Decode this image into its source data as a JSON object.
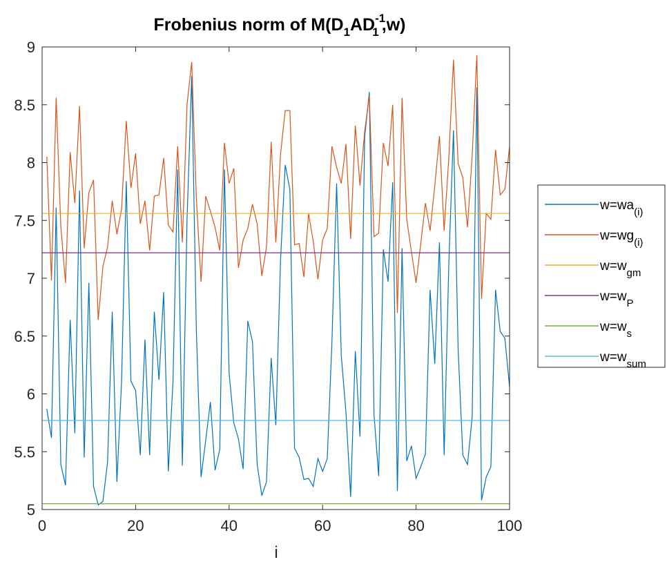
{
  "chart_data": {
    "type": "line",
    "title": {
      "prefix": "Frobenius norm of M(D",
      "sub1": "1",
      "mid": "AD",
      "sup": "-1",
      "sub2": "1",
      "suffix": ",w)"
    },
    "xlabel": "i",
    "ylabel": "",
    "xlim": [
      0,
      100
    ],
    "ylim": [
      5,
      9
    ],
    "xticks": [
      "0",
      "20",
      "40",
      "60",
      "80",
      "100"
    ],
    "yticks": [
      "5",
      "5.5",
      "6",
      "6.5",
      "7",
      "7.5",
      "8",
      "8.5",
      "9"
    ],
    "grid": false,
    "legend_position": "outside-right",
    "series": [
      {
        "name": "w=wa",
        "name_sub": "(i)",
        "color": "#0072BD",
        "x": [
          1,
          2,
          3,
          4,
          5,
          6,
          7,
          8,
          9,
          10,
          11,
          12,
          13,
          14,
          15,
          16,
          17,
          18,
          19,
          20,
          21,
          22,
          23,
          24,
          25,
          26,
          27,
          28,
          29,
          30,
          31,
          32,
          33,
          34,
          35,
          36,
          37,
          38,
          39,
          40,
          41,
          42,
          43,
          44,
          45,
          46,
          47,
          48,
          49,
          50,
          51,
          52,
          53,
          54,
          55,
          56,
          57,
          58,
          59,
          60,
          61,
          62,
          63,
          64,
          65,
          66,
          67,
          68,
          69,
          70,
          71,
          72,
          73,
          74,
          75,
          76,
          77,
          78,
          79,
          80,
          81,
          82,
          83,
          84,
          85,
          86,
          87,
          88,
          89,
          90,
          91,
          92,
          93,
          94,
          95,
          96,
          97,
          98,
          99,
          100
        ],
        "y": [
          5.87,
          5.62,
          7.61,
          5.39,
          5.21,
          6.64,
          5.66,
          7.76,
          5.45,
          6.96,
          5.2,
          5.04,
          5.07,
          5.41,
          6.71,
          5.24,
          6.11,
          7.84,
          6.11,
          6.03,
          5.47,
          6.47,
          5.47,
          6.71,
          6.12,
          6.88,
          5.33,
          6.11,
          7.94,
          5.38,
          7.5,
          8.75,
          6.54,
          5.28,
          5.6,
          5.93,
          5.34,
          5.52,
          7.94,
          6.18,
          5.75,
          5.61,
          5.35,
          6.63,
          6.45,
          5.39,
          5.12,
          5.24,
          6.31,
          5.73,
          7.15,
          7.98,
          7.77,
          5.53,
          5.45,
          5.26,
          5.27,
          5.2,
          5.44,
          5.33,
          5.44,
          6.45,
          7.82,
          6.33,
          5.84,
          5.11,
          6.37,
          5.63,
          8.22,
          8.61,
          5.82,
          5.29,
          7.25,
          6.97,
          7.83,
          5.16,
          7.26,
          5.42,
          5.55,
          5.27,
          5.37,
          5.48,
          6.9,
          6.26,
          7.31,
          5.47,
          7.12,
          8.28,
          6.38,
          5.47,
          5.39,
          5.8,
          8.65,
          5.08,
          5.28,
          5.37,
          6.9,
          6.54,
          6.48,
          6.06
        ]
      },
      {
        "name": "w=wg",
        "name_sub": "(i)",
        "color": "#D95319",
        "x": [
          1,
          2,
          3,
          4,
          5,
          6,
          7,
          8,
          9,
          10,
          11,
          12,
          13,
          14,
          15,
          16,
          17,
          18,
          19,
          20,
          21,
          22,
          23,
          24,
          25,
          26,
          27,
          28,
          29,
          30,
          31,
          32,
          33,
          34,
          35,
          36,
          37,
          38,
          39,
          40,
          41,
          42,
          43,
          44,
          45,
          46,
          47,
          48,
          49,
          50,
          51,
          52,
          53,
          54,
          55,
          56,
          57,
          58,
          59,
          60,
          61,
          62,
          63,
          64,
          65,
          66,
          67,
          68,
          69,
          70,
          71,
          72,
          73,
          74,
          75,
          76,
          77,
          78,
          79,
          80,
          81,
          82,
          83,
          84,
          85,
          86,
          87,
          88,
          89,
          90,
          91,
          92,
          93,
          94,
          95,
          96,
          97,
          98,
          99,
          100
        ],
        "y": [
          8.05,
          6.98,
          8.56,
          7.45,
          6.96,
          8.09,
          7.65,
          8.49,
          7.26,
          7.74,
          7.85,
          6.64,
          7.1,
          7.27,
          7.67,
          7.38,
          7.6,
          8.36,
          7.78,
          8.08,
          7.47,
          7.67,
          7.24,
          7.71,
          7.72,
          8.04,
          7.46,
          7.4,
          8.14,
          7.31,
          8.5,
          8.87,
          7.69,
          6.97,
          7.71,
          7.58,
          7.44,
          7.24,
          8.17,
          7.82,
          7.95,
          7.09,
          7.33,
          7.43,
          7.64,
          7.47,
          7.02,
          7.27,
          8.18,
          7.31,
          8.07,
          8.45,
          8.45,
          7.29,
          7.3,
          7.01,
          7.56,
          7.32,
          6.99,
          7.33,
          7.43,
          8.14,
          7.96,
          7.82,
          8.16,
          7.34,
          8.32,
          7.8,
          8.27,
          8.58,
          7.36,
          7.39,
          8.17,
          7.97,
          8.5,
          6.7,
          8.56,
          7.51,
          7.23,
          6.96,
          7.3,
          7.65,
          7.41,
          7.8,
          8.23,
          7.41,
          8.04,
          8.89,
          7.99,
          7.87,
          7.44,
          8.06,
          8.93,
          6.82,
          7.56,
          7.51,
          8.11,
          7.72,
          7.77,
          8.14
        ]
      },
      {
        "name": "w=w",
        "name_sub": "gm",
        "color": "#EDB120",
        "x": [
          0,
          100
        ],
        "y": [
          7.56,
          7.56
        ]
      },
      {
        "name": "w=w",
        "name_sub": "P",
        "color": "#7E2F8E",
        "x": [
          0,
          100
        ],
        "y": [
          7.22,
          7.22
        ]
      },
      {
        "name": "w=w",
        "name_sub": "s",
        "color": "#77AC30",
        "x": [
          0,
          100
        ],
        "y": [
          5.05,
          5.05
        ]
      },
      {
        "name": "w=w",
        "name_sub": "sum",
        "color": "#4DBEEE",
        "x": [
          0,
          100
        ],
        "y": [
          5.77,
          5.77
        ]
      }
    ]
  }
}
